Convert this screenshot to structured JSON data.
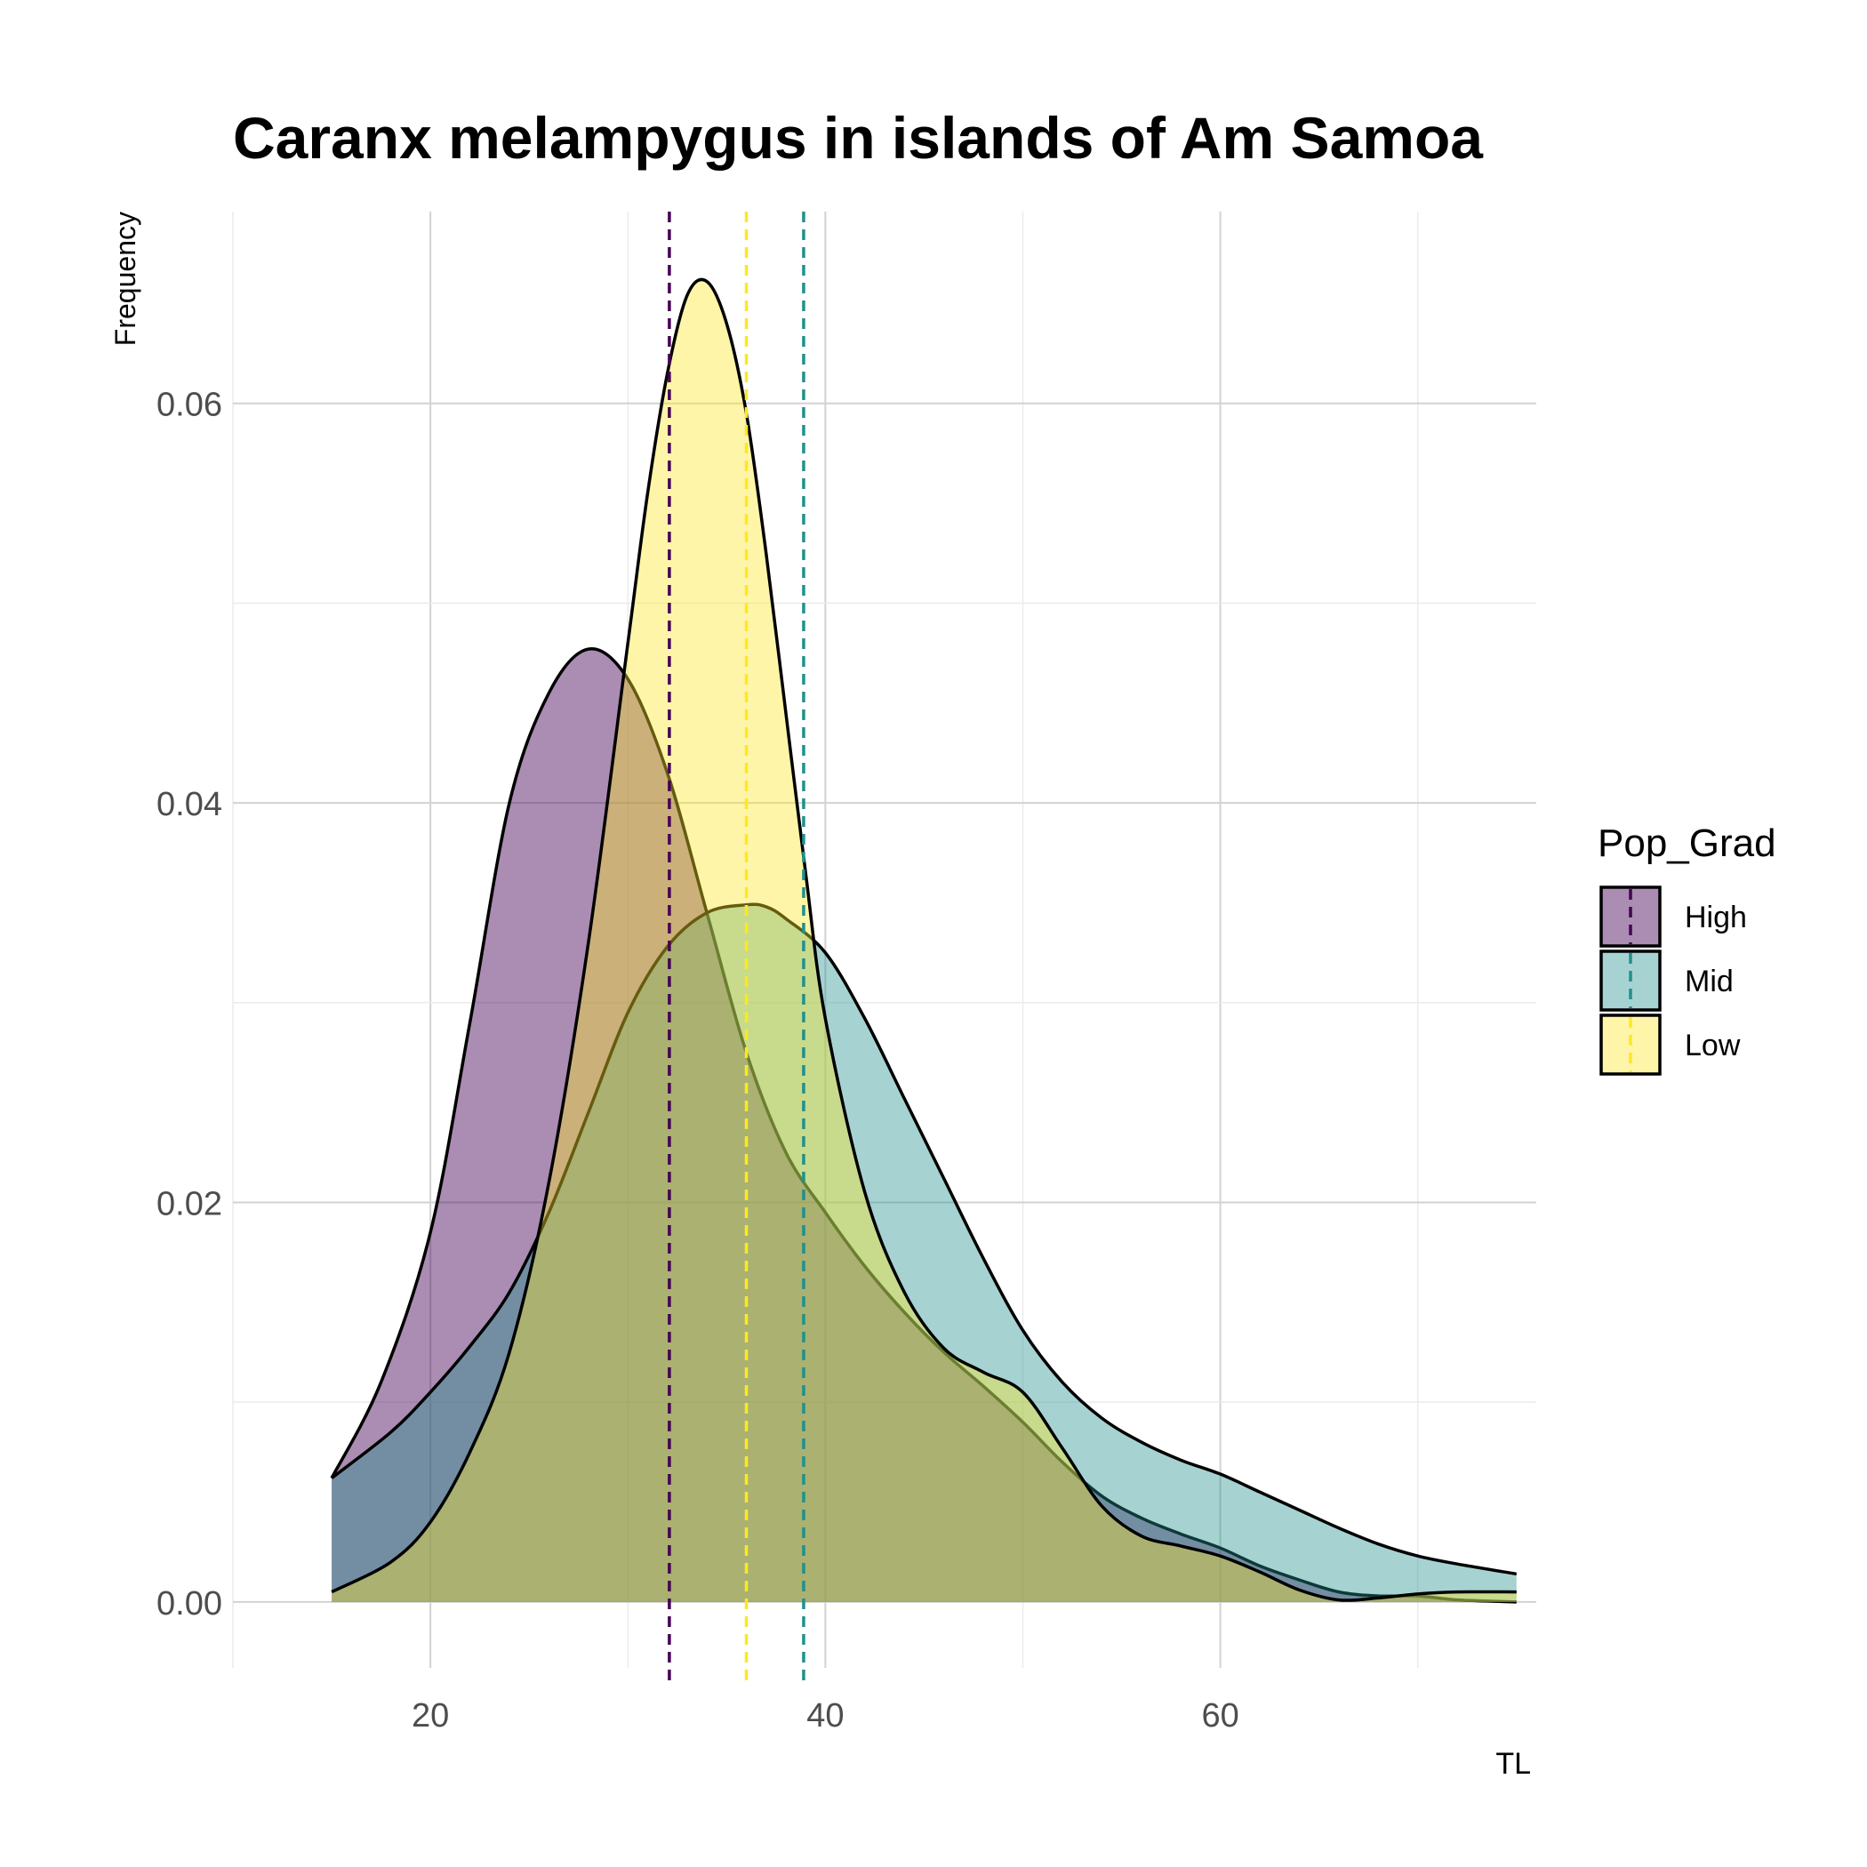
{
  "chart_data": {
    "type": "area",
    "title": "Caranx melampygus in islands of Am Samoa",
    "xlabel": "TL",
    "ylabel": "Frequency",
    "xlim": [
      10,
      76
    ],
    "ylim": [
      -0.0033,
      0.0696
    ],
    "x_ticks": [
      20,
      40,
      60
    ],
    "x_tick_labels": [
      "20",
      "40",
      "60"
    ],
    "y_ticks": [
      0,
      0.02,
      0.04,
      0.06
    ],
    "y_tick_labels": [
      "0.00",
      "0.02",
      "0.04",
      "0.06"
    ],
    "grid": true,
    "legend": {
      "title": "Pop_Grad",
      "position": "right"
    },
    "series": [
      {
        "name": "High",
        "color": "#440154",
        "fill_opacity": 0.45,
        "mean": 32.1,
        "x": [
          15,
          17.5,
          20,
          22,
          24,
          26,
          28,
          30,
          32,
          34,
          36,
          38,
          40,
          42,
          44,
          46,
          48,
          50,
          52,
          54,
          56,
          58,
          60,
          62,
          64,
          66,
          68,
          70,
          72,
          75
        ],
        "y": [
          0.0062,
          0.011,
          0.0185,
          0.029,
          0.04,
          0.0455,
          0.0477,
          0.0462,
          0.0415,
          0.0345,
          0.0275,
          0.0225,
          0.0195,
          0.0168,
          0.0145,
          0.0125,
          0.0108,
          0.009,
          0.007,
          0.0053,
          0.0042,
          0.0034,
          0.0027,
          0.0018,
          0.0011,
          0.0005,
          0.0003,
          0.0003,
          0.0001,
          0.0
        ]
      },
      {
        "name": "Mid",
        "color": "#21908C",
        "fill_opacity": 0.4,
        "mean": 38.9,
        "x": [
          15,
          18,
          20,
          22,
          24,
          26,
          28,
          30,
          32,
          34,
          36,
          37,
          38,
          40,
          42,
          44,
          46,
          48,
          50,
          52,
          54,
          56,
          58,
          60,
          62,
          64,
          66,
          68,
          70,
          72,
          75
        ],
        "y": [
          0.0062,
          0.0085,
          0.0105,
          0.0128,
          0.0155,
          0.0195,
          0.0245,
          0.0295,
          0.0328,
          0.0345,
          0.0349,
          0.0348,
          0.0342,
          0.0325,
          0.0292,
          0.0252,
          0.0212,
          0.0172,
          0.0136,
          0.011,
          0.0092,
          0.008,
          0.0071,
          0.0064,
          0.0055,
          0.0046,
          0.0037,
          0.0029,
          0.0023,
          0.0019,
          0.0014
        ]
      },
      {
        "name": "Low",
        "color": "#FDE725",
        "fill_opacity": 0.4,
        "mean": 36.0,
        "x": [
          15,
          18,
          20,
          22,
          24,
          26,
          28,
          30,
          31,
          32,
          33,
          34,
          35,
          36,
          37,
          38,
          39,
          40,
          42,
          44,
          46,
          48,
          50,
          52,
          54,
          56,
          58,
          60,
          62,
          64,
          66,
          68,
          70,
          72,
          75
        ],
        "y": [
          0.0005,
          0.002,
          0.004,
          0.0075,
          0.0125,
          0.021,
          0.033,
          0.048,
          0.0555,
          0.0615,
          0.0654,
          0.0661,
          0.064,
          0.0595,
          0.0525,
          0.0445,
          0.0365,
          0.0292,
          0.0205,
          0.0155,
          0.0127,
          0.0115,
          0.0105,
          0.0077,
          0.0048,
          0.0033,
          0.0028,
          0.0023,
          0.0015,
          0.0006,
          0.0001,
          0.0002,
          0.0004,
          0.0005,
          0.0005
        ]
      }
    ]
  }
}
